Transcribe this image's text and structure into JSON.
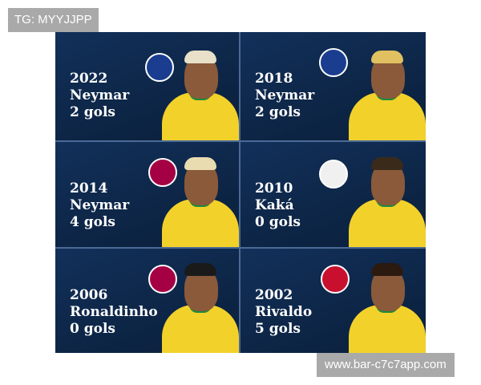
{
  "watermarks": {
    "top": "TG: MYYJJPP",
    "bottom": "www.bar-c7c7app.com"
  },
  "cards": [
    {
      "year": "2022",
      "player": "Neymar",
      "goals": "2 gols",
      "club_icon": "psg-crest-icon",
      "crest_color": "#1a3d8f",
      "hair": "#e8e0c8"
    },
    {
      "year": "2018",
      "player": "Neymar",
      "goals": "2 gols",
      "club_icon": "psg-crest-icon",
      "crest_color": "#1a3d8f",
      "hair": "#e0c060"
    },
    {
      "year": "2014",
      "player": "Neymar",
      "goals": "4 gols",
      "club_icon": "barcelona-crest-icon",
      "crest_color": "#a50044",
      "hair": "#e8dcb0"
    },
    {
      "year": "2010",
      "player": "Kaká",
      "goals": "0 gols",
      "club_icon": "real-madrid-crest-icon",
      "crest_color": "#f0f0f0",
      "hair": "#3a2a1a"
    },
    {
      "year": "2006",
      "player": "Ronaldinho",
      "goals": "0 gols",
      "club_icon": "barcelona-crest-icon",
      "crest_color": "#a50044",
      "hair": "#1a1a1a"
    },
    {
      "year": "2002",
      "player": "Rivaldo",
      "goals": "5 gols",
      "club_icon": "ac-milan-crest-icon",
      "crest_color": "#c8102e",
      "hair": "#2a1a10"
    }
  ]
}
